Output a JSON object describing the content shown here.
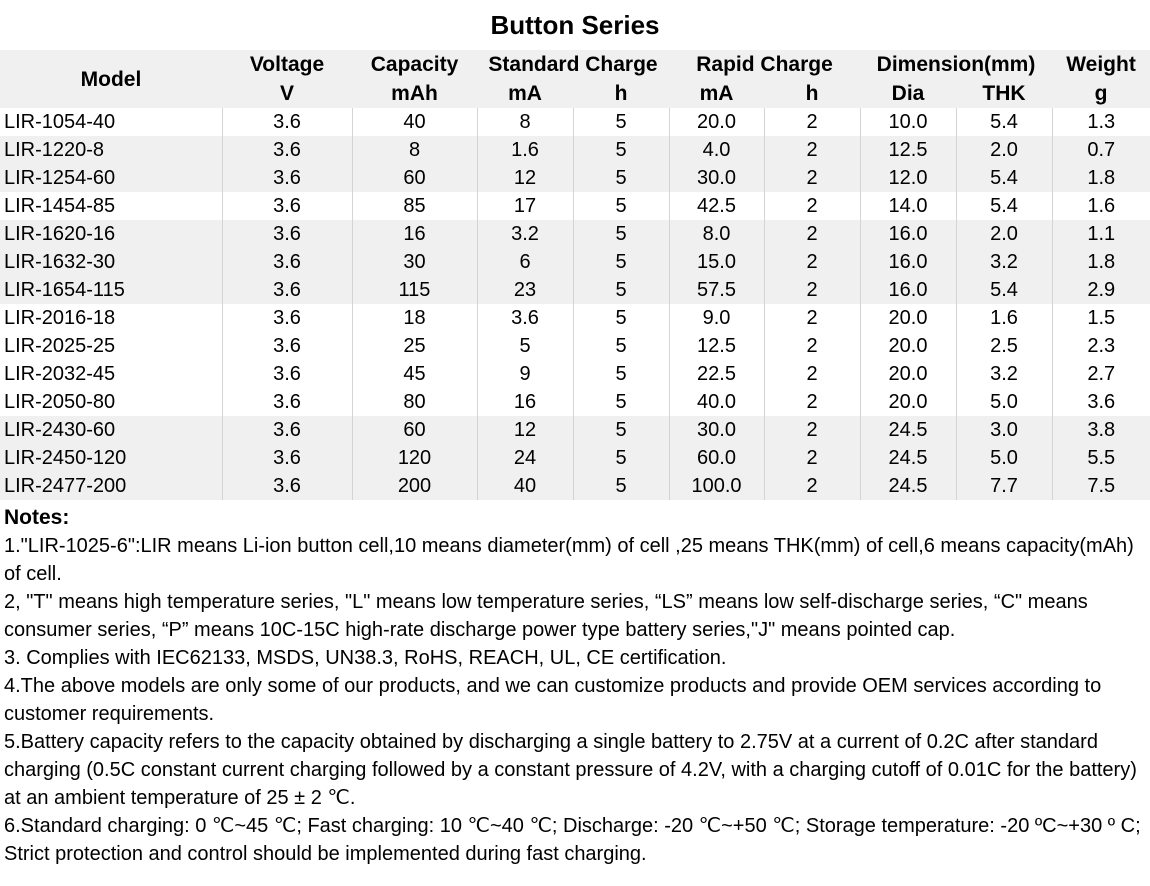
{
  "title": "Button Series",
  "header": {
    "model": "Model",
    "voltage": "Voltage",
    "voltage_unit": "V",
    "capacity": "Capacity",
    "capacity_unit": "mAh",
    "standard_charge": "Standard Charge",
    "standard_ma": "mA",
    "standard_h": "h",
    "rapid_charge": "Rapid Charge",
    "rapid_ma": "mA",
    "rapid_h": "h",
    "dimension": "Dimension(mm)",
    "dia": "Dia",
    "thk": "THK",
    "weight": "Weight",
    "weight_unit": "g"
  },
  "rows": [
    [
      "LIR-1054-40",
      "3.6",
      "40",
      "8",
      "5",
      "20.0",
      "2",
      "10.0",
      "5.4",
      "1.3"
    ],
    [
      "LIR-1220-8",
      "3.6",
      "8",
      "1.6",
      "5",
      "4.0",
      "2",
      "12.5",
      "2.0",
      "0.7"
    ],
    [
      "LIR-1254-60",
      "3.6",
      "60",
      "12",
      "5",
      "30.0",
      "2",
      "12.0",
      "5.4",
      "1.8"
    ],
    [
      "LIR-1454-85",
      "3.6",
      "85",
      "17",
      "5",
      "42.5",
      "2",
      "14.0",
      "5.4",
      "1.6"
    ],
    [
      "LIR-1620-16",
      "3.6",
      "16",
      "3.2",
      "5",
      "8.0",
      "2",
      "16.0",
      "2.0",
      "1.1"
    ],
    [
      "LIR-1632-30",
      "3.6",
      "30",
      "6",
      "5",
      "15.0",
      "2",
      "16.0",
      "3.2",
      "1.8"
    ],
    [
      "LIR-1654-115",
      "3.6",
      "115",
      "23",
      "5",
      "57.5",
      "2",
      "16.0",
      "5.4",
      "2.9"
    ],
    [
      "LIR-2016-18",
      "3.6",
      "18",
      "3.6",
      "5",
      "9.0",
      "2",
      "20.0",
      "1.6",
      "1.5"
    ],
    [
      "LIR-2025-25",
      "3.6",
      "25",
      "5",
      "5",
      "12.5",
      "2",
      "20.0",
      "2.5",
      "2.3"
    ],
    [
      "LIR-2032-45",
      "3.6",
      "45",
      "9",
      "5",
      "22.5",
      "2",
      "20.0",
      "3.2",
      "2.7"
    ],
    [
      "LIR-2050-80",
      "3.6",
      "80",
      "16",
      "5",
      "40.0",
      "2",
      "20.0",
      "5.0",
      "3.6"
    ],
    [
      "LIR-2430-60",
      "3.6",
      "60",
      "12",
      "5",
      "30.0",
      "2",
      "24.5",
      "3.0",
      "3.8"
    ],
    [
      "LIR-2450-120",
      "3.6",
      "120",
      "24",
      "5",
      "60.0",
      "2",
      "24.5",
      "5.0",
      "5.5"
    ],
    [
      "LIR-2477-200",
      "3.6",
      "200",
      "40",
      "5",
      "100.0",
      "2",
      "24.5",
      "7.7",
      "7.5"
    ]
  ],
  "notes": {
    "heading": "Notes:",
    "items": [
      "1.\"LIR-1025-6\":LIR means Li-ion button cell,10 means diameter(mm) of cell ,25 means THK(mm) of cell,6 means capacity(mAh) of cell.",
      "2, \"T\" means high temperature series, \"L\" means low temperature series, “LS” means low self-discharge series, “C\" means consumer series, “P” means 10C-15C high-rate discharge power type battery series,\"J\" means pointed cap.",
      "3. Complies with IEC62133, MSDS, UN38.3, RoHS, REACH, UL, CE certification.",
      "4.The above models are only some of our products, and we can customize products and provide OEM services according to customer requirements.",
      "5.Battery capacity refers to the capacity obtained by discharging a single battery to 2.75V at a current of 0.2C after standard charging (0.5C constant current charging followed by a constant pressure of 4.2V, with a charging cutoff of 0.01C for the battery) at an ambient temperature of 25 ± 2 ℃.",
      "6.Standard charging: 0 ℃~45 ℃; Fast charging: 10 ℃~40 ℃; Discharge: -20 ℃~+50 ℃; Storage temperature: -20 ºC~+30 º C; Strict protection and control should be implemented during fast charging."
    ]
  }
}
